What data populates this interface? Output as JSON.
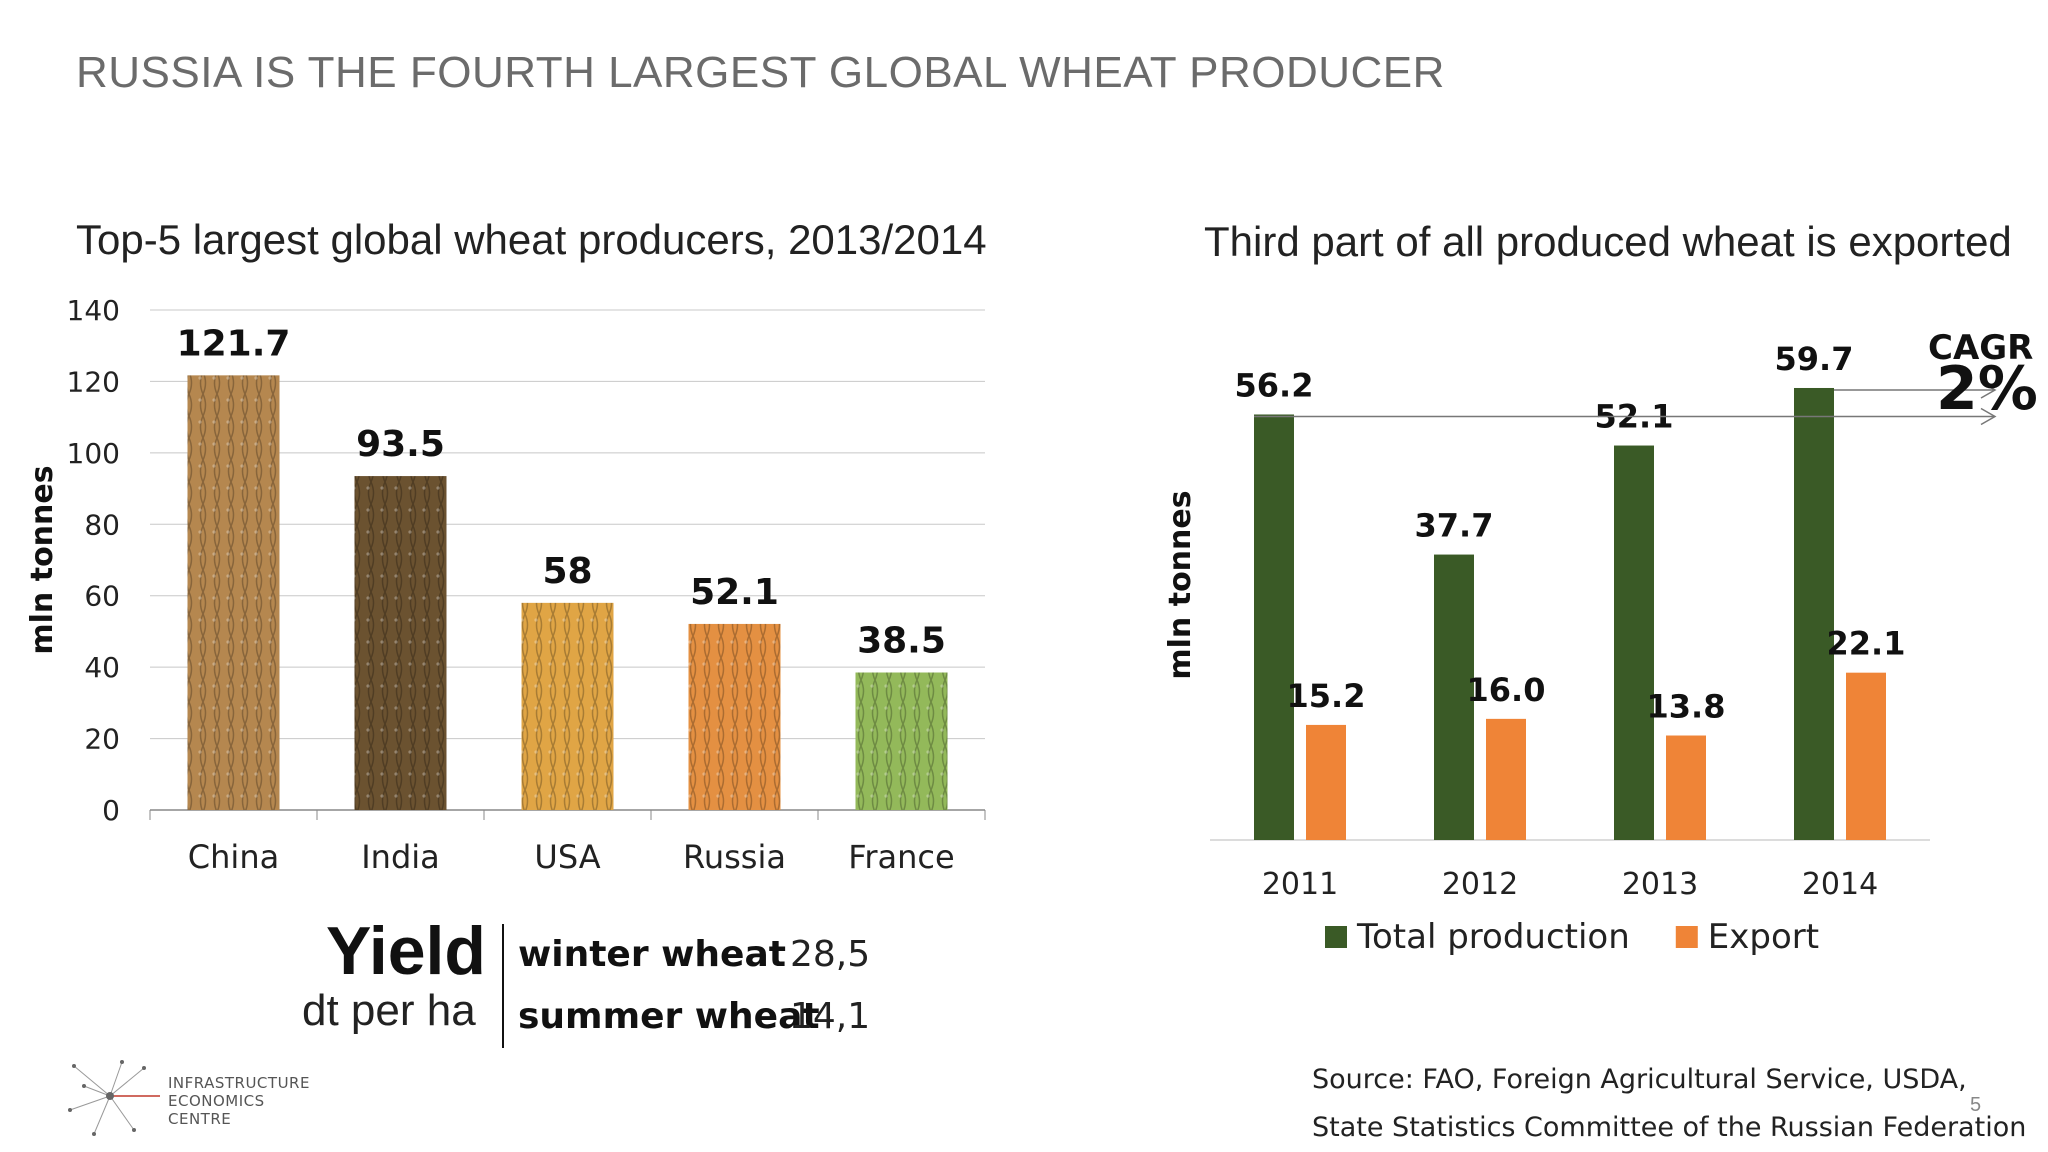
{
  "page": {
    "title": "RUSSIA IS THE FOURTH LARGEST GLOBAL WHEAT PRODUCER",
    "page_number": "5"
  },
  "colors": {
    "total_production": "#3a5a26",
    "export": "#ef8437",
    "china_bar": "#b5874f",
    "india_bar": "#6b5230",
    "usa_bar": "#e0a545",
    "russia_bar": "#e49042",
    "france_bar": "#93b95a"
  },
  "chart_data": [
    {
      "type": "bar",
      "title": "Top-5 largest global wheat producers, 2013/2014",
      "ylabel": "mln tonnes",
      "categories": [
        "China",
        "India",
        "USA",
        "Russia",
        "France"
      ],
      "values": [
        121.7,
        93.5,
        58,
        52.1,
        38.5
      ],
      "value_labels": [
        "121.7",
        "93.5",
        "58",
        "52.1",
        "38.5"
      ],
      "ylim": [
        0,
        140
      ],
      "yticks": [
        "0",
        "20",
        "40",
        "60",
        "80",
        "100",
        "120",
        "140"
      ],
      "grid": true,
      "legend": "none"
    },
    {
      "type": "bar",
      "title": "Third part of all produced wheat is exported",
      "ylabel": "mln tonnes",
      "categories": [
        "2011",
        "2012",
        "2013",
        "2014"
      ],
      "series": [
        {
          "name": "Total production",
          "values": [
            56.2,
            37.7,
            52.1,
            59.7
          ],
          "labels": [
            "56.2",
            "37.7",
            "52.1",
            "59.7"
          ]
        },
        {
          "name": "Export",
          "values": [
            15.2,
            16.0,
            13.8,
            22.1
          ],
          "labels": [
            "15.2",
            "16.0",
            "13.8",
            "22.1"
          ]
        }
      ],
      "annotation": {
        "label": "CAGR",
        "value": "2%"
      },
      "grid": false,
      "legend": "bottom"
    }
  ],
  "yield": {
    "title": "Yield",
    "unit": "dt per ha",
    "rows": [
      {
        "label": "winter wheat",
        "value": "28,5"
      },
      {
        "label": "summer wheat",
        "value": "14,1"
      }
    ]
  },
  "source": {
    "line1": "Source: FAO, Foreign Agricultural Service, USDA,",
    "line2": "State Statistics Committee of the Russian Federation"
  },
  "logo": {
    "line1": "INFRASTRUCTURE",
    "line2": "ECONOMICS",
    "line3": "CENTRE"
  }
}
